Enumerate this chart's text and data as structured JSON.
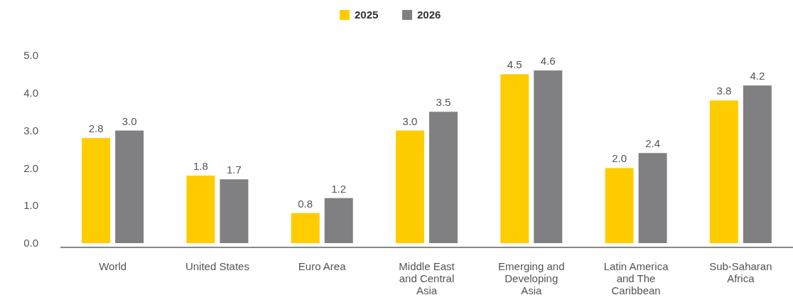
{
  "chart_data": {
    "type": "bar",
    "categories": [
      "World",
      "United States",
      "Euro Area",
      "Middle East and Central Asia",
      "Emerging and Developing Asia",
      "Latin America and The Caribbean",
      "Sub-Saharan Africa"
    ],
    "series": [
      {
        "name": "2025",
        "color": "#ffcc00",
        "values": [
          2.8,
          1.8,
          0.8,
          3.0,
          4.5,
          2.0,
          3.8
        ],
        "value_labels": [
          "2.8",
          "1.8",
          "0.8",
          "3.0",
          "4.5",
          "2.0",
          "3.8"
        ]
      },
      {
        "name": "2026",
        "color": "#808083",
        "values": [
          3.0,
          1.7,
          1.2,
          3.5,
          4.6,
          2.4,
          4.2
        ],
        "value_labels": [
          "3.0",
          "1.7",
          "1.2",
          "3.5",
          "4.6",
          "2.4",
          "4.2"
        ]
      }
    ],
    "ylim": [
      0,
      5
    ],
    "yticks": [
      {
        "value": 0,
        "label": "0.0"
      },
      {
        "value": 1,
        "label": "1.0"
      },
      {
        "value": 2,
        "label": "2.0"
      },
      {
        "value": 3,
        "label": "3.0"
      },
      {
        "value": 4,
        "label": "4.0"
      },
      {
        "value": 5,
        "label": "5.0"
      }
    ],
    "legend": "top",
    "grid": false
  }
}
